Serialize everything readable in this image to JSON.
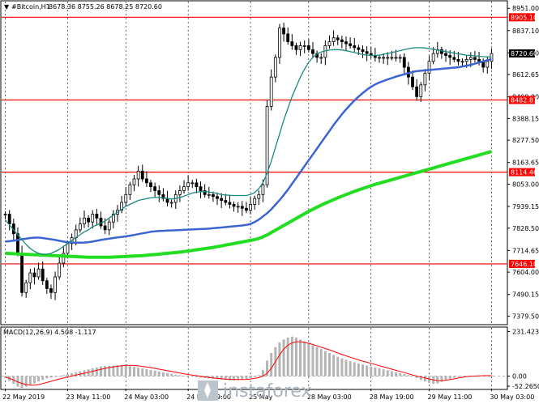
{
  "header": {
    "symbol": "#Bitcoin,H1",
    "ohlc": "8678.36 8755.26 8678.25 8720.60"
  },
  "indicator": {
    "label": "MACD(12,26,9) 4.508 -1.117"
  },
  "watermark": {
    "text": "instaforex"
  },
  "colors": {
    "background": "#ffffff",
    "candles": "#000000",
    "fast_ma": "#1a8a80",
    "medium_ma": "#3c64d2",
    "slow_ma": "#22dd22",
    "level_lines": "#ff0000",
    "macd_histogram": "#b4b4b4",
    "macd_signal": "#ff0000",
    "price_marker": "#000000"
  },
  "chart_data": [
    {
      "type": "candlestick",
      "title": "#Bitcoin,H1",
      "ylim": [
        7340,
        8985
      ],
      "y_ticks": [
        "8951.00",
        "8837.10",
        "8723.30",
        "8612.65",
        "8498.80",
        "8388.15",
        "8277.50",
        "8163.65",
        "8053.00",
        "7939.15",
        "7828.50",
        "7714.65",
        "7604.00",
        "7490.15",
        "7379.50"
      ],
      "x_ticks": [
        "22 May 2019",
        "23 May 11:00",
        "24 May 03:00",
        "24 May 19:00",
        "25 May",
        "28 May 03:00",
        "28 May 19:00",
        "29 May 11:00",
        "30 May 03:00"
      ],
      "levels": [
        {
          "label": "8905.10",
          "value": 8905.1
        },
        {
          "label": "8482.87",
          "value": 8482.87
        },
        {
          "label": "8114.46",
          "value": 8114.46
        },
        {
          "label": "7646.10",
          "value": 7646.1
        }
      ],
      "current_price": {
        "label": "8720.60",
        "value": 8720.6
      },
      "series": [
        {
          "kind": "candles",
          "close": [
            7900,
            7850,
            7800,
            7700,
            7500,
            7550,
            7600,
            7580,
            7620,
            7560,
            7520,
            7500,
            7580,
            7650,
            7700,
            7750,
            7780,
            7820,
            7850,
            7880,
            7860,
            7900,
            7880,
            7840,
            7820,
            7860,
            7900,
            7920,
            7960,
            8000,
            8050,
            8080,
            8120,
            8080,
            8060,
            8040,
            8020,
            8000,
            7980,
            7960,
            7960,
            8000,
            8020,
            8040,
            8060,
            8060,
            8040,
            8020,
            8000,
            8000,
            7990,
            7980,
            7970,
            7960,
            7950,
            7940,
            7940,
            7930,
            7920,
            7950,
            7980,
            8000,
            8050,
            8450,
            8600,
            8700,
            8850,
            8820,
            8780,
            8760,
            8740,
            8760,
            8760,
            8740,
            8720,
            8700,
            8700,
            8760,
            8780,
            8800,
            8790,
            8780,
            8770,
            8760,
            8750,
            8740,
            8730,
            8720,
            8710,
            8700,
            8700,
            8700,
            8700,
            8700,
            8700,
            8700,
            8650,
            8600,
            8550,
            8500,
            8560,
            8620,
            8680,
            8720,
            8740,
            8720,
            8710,
            8700,
            8690,
            8680,
            8680,
            8690,
            8700,
            8690,
            8680,
            8650,
            8680,
            8720
          ]
        },
        {
          "kind": "moving_average",
          "period": "fast",
          "values": [
            7870,
            7845,
            7820,
            7795,
            7770,
            7745,
            7725,
            7710,
            7700,
            7695,
            7695,
            7700,
            7710,
            7720,
            7735,
            7750,
            7765,
            7780,
            7795,
            7810,
            7820,
            7835,
            7845,
            7855,
            7865,
            7880,
            7895,
            7910,
            7925,
            7940,
            7950,
            7960,
            7970,
            7975,
            7980,
            7983,
            7985,
            7985,
            7983,
            7980,
            7978,
            7980,
            7985,
            7992,
            8000,
            8008,
            8012,
            8015,
            8015,
            8013,
            8010,
            8005,
            8000,
            7998,
            7996,
            7995,
            7995,
            7995,
            7995,
            8000,
            8010,
            8030,
            8060,
            8110,
            8170,
            8240,
            8310,
            8380,
            8440,
            8500,
            8550,
            8600,
            8640,
            8675,
            8700,
            8718,
            8728,
            8734,
            8738,
            8740,
            8740,
            8738,
            8735,
            8730,
            8725,
            8720,
            8715,
            8712,
            8710,
            8710,
            8712,
            8716,
            8720,
            8725,
            8730,
            8735,
            8740,
            8745,
            8748,
            8750,
            8750,
            8748,
            8745,
            8742,
            8738,
            8734,
            8730,
            8726,
            8722,
            8718,
            8715,
            8712,
            8710,
            8708,
            8706,
            8704,
            8703,
            8702
          ]
        },
        {
          "kind": "moving_average",
          "period": "medium",
          "values": [
            7760,
            7762,
            7765,
            7768,
            7772,
            7775,
            7778,
            7780,
            7780,
            7778,
            7775,
            7772,
            7768,
            7764,
            7760,
            7757,
            7755,
            7754,
            7754,
            7755,
            7757,
            7760,
            7764,
            7768,
            7772,
            7775,
            7778,
            7781,
            7784,
            7787,
            7790,
            7794,
            7798,
            7802,
            7806,
            7810,
            7812,
            7814,
            7815,
            7816,
            7817,
            7818,
            7819,
            7820,
            7821,
            7822,
            7823,
            7824,
            7825,
            7826,
            7828,
            7830,
            7832,
            7834,
            7836,
            7838,
            7840,
            7842,
            7845,
            7850,
            7860,
            7872,
            7888,
            7905,
            7925,
            7948,
            7972,
            7998,
            8025,
            8055,
            8085,
            8115,
            8145,
            8175,
            8205,
            8235,
            8265,
            8295,
            8325,
            8355,
            8383,
            8410,
            8435,
            8458,
            8480,
            8500,
            8518,
            8535,
            8550,
            8562,
            8572,
            8580,
            8588,
            8595,
            8602,
            8608,
            8614,
            8620,
            8626,
            8630,
            8632,
            8634,
            8636,
            8638,
            8640,
            8642,
            8644,
            8646,
            8648,
            8650,
            8654,
            8658,
            8662,
            8668,
            8674,
            8680,
            8686,
            8692
          ]
        },
        {
          "kind": "moving_average",
          "period": "slow",
          "values": [
            7700,
            7699,
            7698,
            7697,
            7696,
            7695,
            7694,
            7693,
            7692,
            7691,
            7690,
            7689,
            7688,
            7687,
            7686,
            7685,
            7684,
            7683,
            7682,
            7681,
            7680,
            7680,
            7680,
            7680,
            7680,
            7680,
            7681,
            7682,
            7683,
            7684,
            7685,
            7686,
            7687,
            7688,
            7690,
            7692,
            7694,
            7696,
            7698,
            7700,
            7702,
            7704,
            7706,
            7709,
            7712,
            7715,
            7718,
            7721,
            7724,
            7727,
            7730,
            7734,
            7738,
            7742,
            7746,
            7750,
            7754,
            7758,
            7762,
            7766,
            7770,
            7776,
            7784,
            7794,
            7806,
            7818,
            7830,
            7842,
            7854,
            7866,
            7878,
            7890,
            7902,
            7914,
            7925,
            7936,
            7946,
            7956,
            7965,
            7974,
            7983,
            7992,
            8000,
            8008,
            8016,
            8024,
            8031,
            8038,
            8045,
            8052,
            8058,
            8064,
            8070,
            8076,
            8082,
            8088,
            8094,
            8100,
            8106,
            8112,
            8118,
            8124,
            8130,
            8136,
            8142,
            8148,
            8154,
            8160,
            8166,
            8172,
            8178,
            8184,
            8190,
            8196,
            8202,
            8208,
            8214,
            8220
          ]
        }
      ]
    },
    {
      "type": "bar",
      "title": "MACD(12,26,9) 4.508 -1.117",
      "ylim": [
        -65,
        250
      ],
      "y_ticks": [
        "231.423",
        "0.00",
        "-52.2650"
      ],
      "series": [
        {
          "name": "",
          "kind": "histogram",
          "values": [
            -10,
            -25,
            -40,
            -55,
            -62,
            -55,
            -48,
            -38,
            -28,
            -20,
            -12,
            -8,
            -4,
            0,
            5,
            10,
            15,
            20,
            25,
            30,
            35,
            40,
            45,
            50,
            52,
            54,
            55,
            56,
            57,
            56,
            52,
            48,
            44,
            40,
            36,
            32,
            28,
            24,
            20,
            16,
            12,
            8,
            5,
            2,
            0,
            -2,
            -5,
            -8,
            -10,
            -12,
            -14,
            -16,
            -18,
            -20,
            -22,
            -22,
            -20,
            -18,
            -15,
            -10,
            -5,
            5,
            30,
            80,
            120,
            150,
            175,
            190,
            200,
            205,
            200,
            190,
            180,
            170,
            160,
            150,
            140,
            130,
            120,
            110,
            100,
            92,
            85,
            78,
            72,
            66,
            60,
            55,
            50,
            45,
            40,
            35,
            30,
            25,
            20,
            15,
            10,
            5,
            0,
            -10,
            -20,
            -28,
            -35,
            -40,
            -38,
            -30,
            -22,
            -14,
            -8,
            -4,
            -2,
            0,
            2,
            2,
            2,
            2,
            2,
            3
          ]
        },
        {
          "name": "",
          "kind": "signal",
          "values": [
            -5,
            -12,
            -20,
            -30,
            -38,
            -44,
            -47,
            -47,
            -44,
            -39,
            -33,
            -27,
            -21,
            -15,
            -10,
            -5,
            0,
            5,
            10,
            15,
            20,
            25,
            30,
            35,
            40,
            44,
            48,
            51,
            54,
            56,
            56,
            55,
            53,
            50,
            47,
            44,
            40,
            36,
            32,
            28,
            24,
            20,
            16,
            12,
            8,
            5,
            2,
            -1,
            -4,
            -7,
            -10,
            -12,
            -14,
            -16,
            -17,
            -18,
            -18,
            -18,
            -17,
            -15,
            -12,
            -8,
            0,
            15,
            40,
            75,
            110,
            140,
            160,
            172,
            178,
            178,
            175,
            170,
            164,
            157,
            150,
            143,
            136,
            128,
            120,
            112,
            105,
            98,
            91,
            84,
            78,
            72,
            66,
            60,
            54,
            48,
            42,
            36,
            30,
            24,
            18,
            12,
            6,
            0,
            -5,
            -10,
            -15,
            -20,
            -23,
            -24,
            -22,
            -18,
            -14,
            -10,
            -6,
            -3,
            -1,
            0,
            1,
            2,
            2,
            2
          ]
        }
      ]
    }
  ]
}
